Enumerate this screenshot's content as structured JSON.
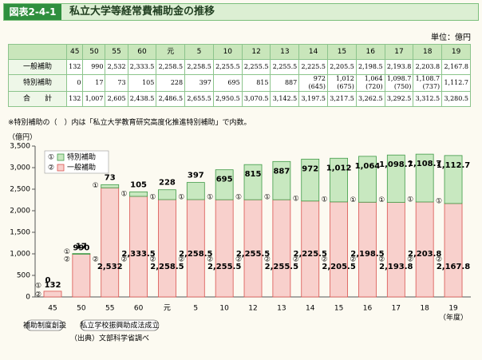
{
  "header": {
    "figure_no": "図表2-4-1",
    "title": "私立大学等経常費補助金の推移"
  },
  "table": {
    "unit": "単位：億円",
    "years": [
      "45",
      "50",
      "55",
      "60",
      "元",
      "5",
      "10",
      "12",
      "13",
      "14",
      "15",
      "16",
      "17",
      "18",
      "19"
    ],
    "rows": [
      {
        "label": "一般補助",
        "cells": [
          "132",
          "990",
          "2,532",
          "2,333.5",
          "2,258.5",
          "2,258.5",
          "2,255.5",
          "2,255.5",
          "2,255.5",
          "2,225.5",
          "2,205.5",
          "2,198.5",
          "2,193.8",
          "2,203.8",
          "2,167.8"
        ]
      },
      {
        "label": "特別補助",
        "cells": [
          "0",
          "17",
          "73",
          "105",
          "228",
          "397",
          "695",
          "815",
          "887",
          "972\n(645)",
          "1,012\n(675)",
          "1,064\n(720)",
          "1,098.7\n(750)",
          "1,108.7\n(737)",
          "1,112.7"
        ]
      },
      {
        "label": "合　　計",
        "cells": [
          "132",
          "1,007",
          "2,605",
          "2,438.5",
          "2,486.5",
          "2,655.5",
          "2,950.5",
          "3,070.5",
          "3,142.5",
          "3,197.5",
          "3,217.5",
          "3,262.5",
          "3,292.5",
          "3,312.5",
          "3,280.5"
        ]
      }
    ],
    "note": "※特別補助の（　）内は「私立大学教育研究高度化推進特別補助」で内数。"
  },
  "chart_data": {
    "type": "stacked_bar",
    "y_label": "（億円）",
    "x_unit": "（年度）",
    "categories": [
      "45",
      "50",
      "55",
      "60",
      "元",
      "5",
      "10",
      "12",
      "13",
      "14",
      "15",
      "16",
      "17",
      "18",
      "19"
    ],
    "series": [
      {
        "name": "一般補助",
        "marker": "②",
        "color": "#f8d0cc",
        "edge": "#d9534f",
        "values": [
          132,
          990,
          2532,
          2333.5,
          2258.5,
          2258.5,
          2255.5,
          2255.5,
          2255.5,
          2225.5,
          2205.5,
          2198.5,
          2193.8,
          2203.8,
          2167.8
        ],
        "value_labels": [
          "132",
          "990",
          "2,532",
          "2,333.5",
          "2,258.5",
          "2,258.5",
          "2,255.5",
          "2,255.5",
          "2,255.5",
          "2,225.5",
          "2,205.5",
          "2,198.5",
          "2,193.8",
          "2,203.8",
          "2,167.8"
        ]
      },
      {
        "name": "特別補助",
        "marker": "①",
        "color": "#c8e8c0",
        "edge": "#3f9a46",
        "values": [
          0,
          17,
          73,
          105,
          228,
          397,
          695,
          815,
          887,
          972,
          1012,
          1064,
          1098.7,
          1108.7,
          1112.7
        ],
        "value_labels": [
          "0",
          "17",
          "73",
          "105",
          "228",
          "397",
          "695",
          "815",
          "887",
          "972",
          "1,012",
          "1,064",
          "1,098.7",
          "1,108.7",
          "1,112.7"
        ]
      }
    ],
    "ylim": [
      0,
      3500
    ],
    "yticks": [
      0,
      500,
      {
        "value": 1000,
        "label": "1,000"
      },
      {
        "value": 1500,
        "label": "1,500"
      },
      {
        "value": 2000,
        "label": "2,000"
      },
      {
        "value": 2500,
        "label": "2,500"
      },
      {
        "value": 3000,
        "label": "3,000"
      },
      {
        "value": 3500,
        "label": "3,500"
      }
    ],
    "annotations": [
      "補助制度創設",
      "私立学校振興助成法成立"
    ],
    "source": "（出典）文部科学省調べ"
  }
}
